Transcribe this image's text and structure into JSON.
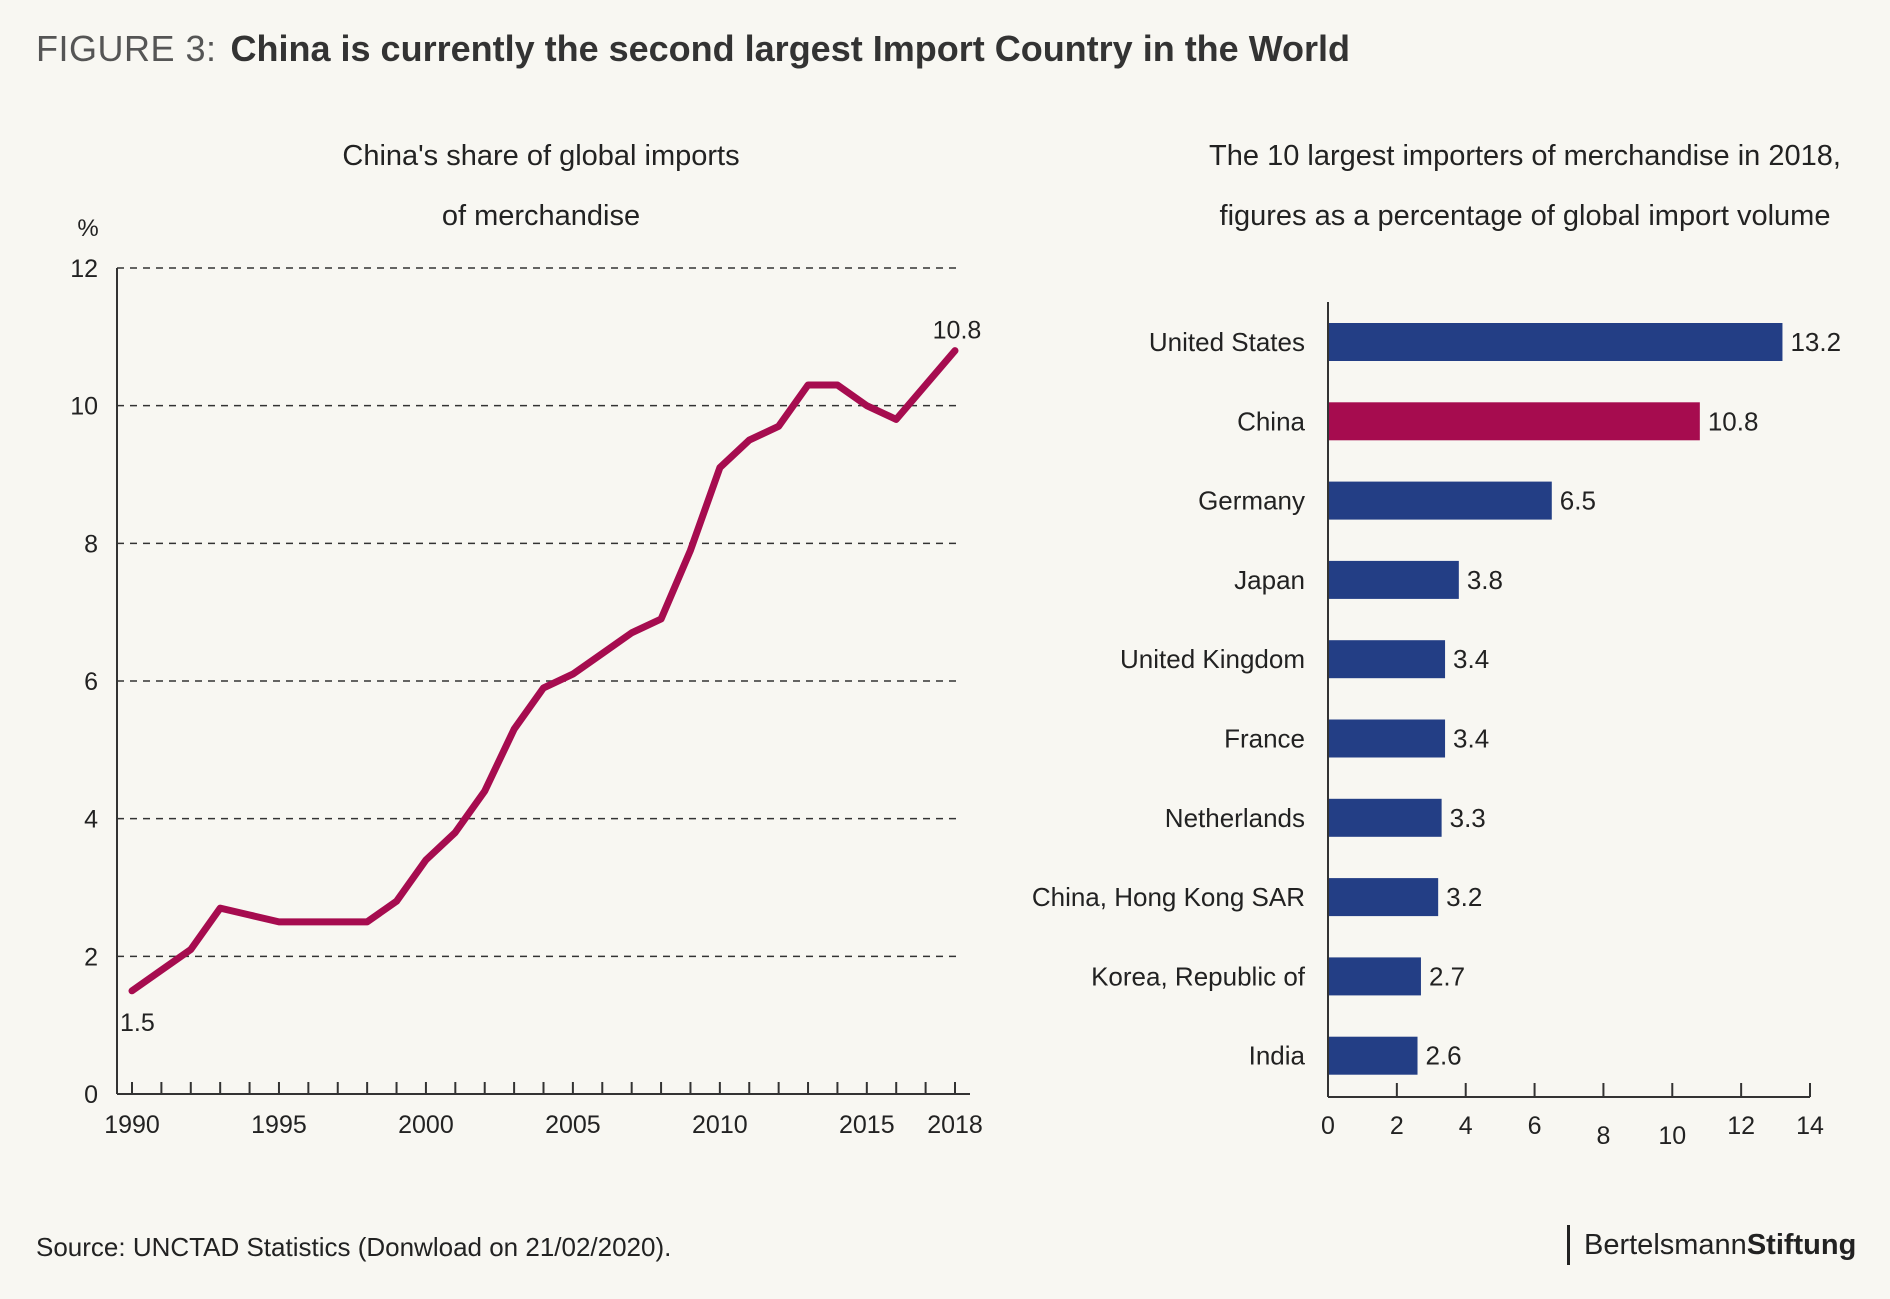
{
  "figure": {
    "label": "FIGURE 3:",
    "title": "China is currently the second largest Import Country in the World"
  },
  "colors": {
    "background": "#f8f7f2",
    "china": "#a60c4f",
    "others": "#233e85"
  },
  "chart_data": [
    {
      "type": "line",
      "title_lines": [
        "China's share of global imports",
        "of merchandise"
      ],
      "ylabel": "%",
      "ylim": [
        0,
        12
      ],
      "yticks": [
        0,
        2,
        4,
        6,
        8,
        10,
        12
      ],
      "xlim": [
        1990,
        2018
      ],
      "xtick_labels": [
        "1990",
        "1995",
        "2000",
        "2005",
        "2010",
        "2015",
        "2018"
      ],
      "grid": true,
      "series": [
        {
          "x": [
            1990,
            1991,
            1992,
            1993,
            1994,
            1995,
            1996,
            1997,
            1998,
            1999,
            2000,
            2001,
            2002,
            2003,
            2004,
            2005,
            2006,
            2007,
            2008,
            2009,
            2010,
            2011,
            2012,
            2013,
            2014,
            2015,
            2016,
            2017,
            2018
          ],
          "y": [
            1.5,
            1.8,
            2.1,
            2.7,
            2.6,
            2.5,
            2.5,
            2.5,
            2.5,
            2.8,
            3.4,
            3.8,
            4.4,
            5.3,
            5.9,
            6.1,
            6.4,
            6.7,
            6.9,
            7.9,
            9.1,
            9.5,
            9.7,
            10.3,
            10.3,
            10.0,
            9.8,
            10.3,
            10.8
          ]
        }
      ],
      "annotations": [
        {
          "x": 1990,
          "y": 1.5,
          "text": "1.5"
        },
        {
          "x": 2018,
          "y": 10.8,
          "text": "10.8"
        }
      ]
    },
    {
      "type": "bar",
      "orientation": "horizontal",
      "title_lines": [
        "The 10 largest importers of merchandise in 2018,",
        "figures as a percentage of global import volume"
      ],
      "categories": [
        "United States",
        "China",
        "Germany",
        "Japan",
        "United Kingdom",
        "France",
        "Netherlands",
        "China, Hong Kong SAR",
        "Korea, Republic of",
        "India"
      ],
      "values": [
        13.2,
        10.8,
        6.5,
        3.8,
        3.4,
        3.4,
        3.3,
        3.2,
        2.7,
        2.6
      ],
      "value_labels": [
        "13.2",
        "10.8",
        "6.5",
        "3.8",
        "3.4",
        "3.4",
        "3.3",
        "3.2",
        "2.7",
        "2.6"
      ],
      "highlight": "China",
      "xlim": [
        0,
        14
      ],
      "xticks": [
        0,
        2,
        4,
        6,
        8,
        10,
        12,
        14
      ]
    }
  ],
  "source": "Source: UNCTAD Statistics (Donwload on 21/02/2020).",
  "brand": {
    "part1": "Bertelsmann",
    "part2": "Stiftung"
  }
}
